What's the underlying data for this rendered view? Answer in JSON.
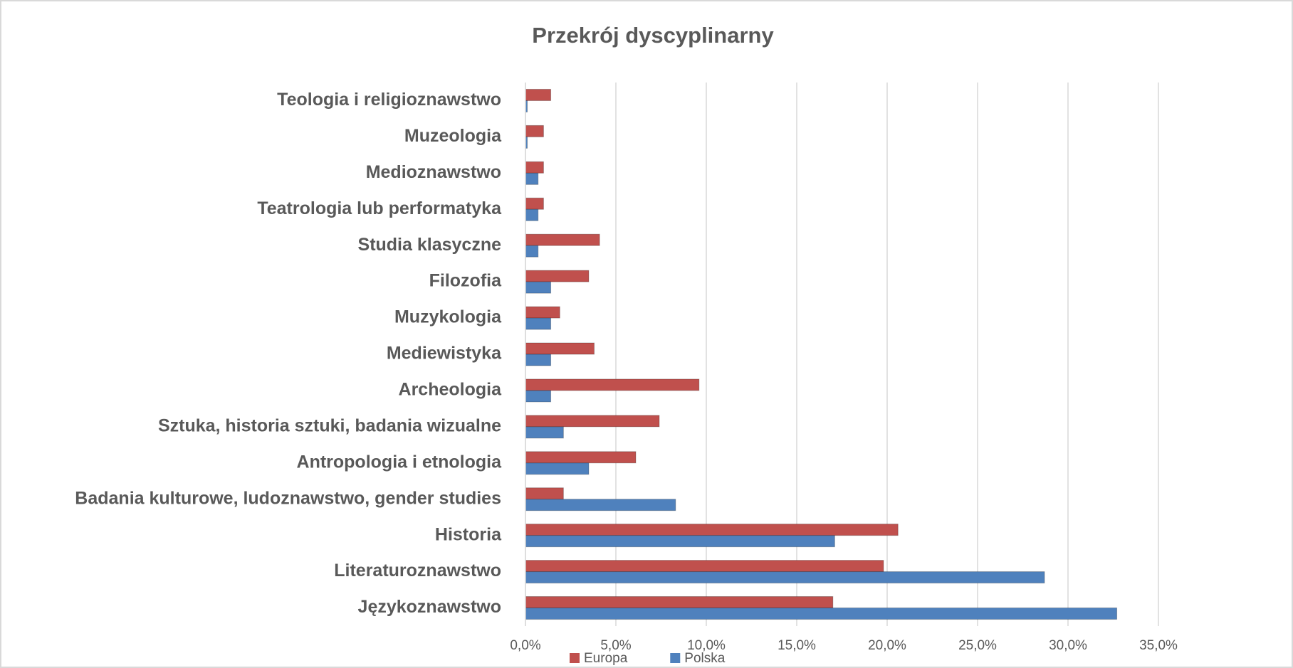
{
  "chart_data": {
    "type": "bar",
    "orientation": "horizontal",
    "title": "Przekrój dyscyplinarny",
    "categories": [
      "Językoznawstwo",
      "Literaturoznawstwo",
      "Historia",
      "Badania kulturowe, ludoznawstwo, gender studies",
      "Antropologia i etnologia",
      "Sztuka, historia sztuki, badania wizualne",
      "Archeologia",
      "Mediewistyka",
      "Muzykologia",
      "Filozofia",
      "Studia klasyczne",
      "Teatrologia lub performatyka",
      "Medioznawstwo",
      "Muzeologia",
      "Teologia i religioznawstwo"
    ],
    "series": [
      {
        "name": "Europa",
        "color": "#c0504d",
        "values": [
          17.0,
          19.8,
          20.6,
          2.1,
          6.1,
          7.4,
          9.6,
          3.8,
          1.9,
          3.5,
          4.1,
          1.0,
          1.0,
          1.0,
          1.4
        ]
      },
      {
        "name": "Polska",
        "color": "#4f81bd",
        "values": [
          32.7,
          28.7,
          17.1,
          8.3,
          3.5,
          2.1,
          1.4,
          1.4,
          1.4,
          1.4,
          0.7,
          0.7,
          0.7,
          0.1,
          0.1
        ]
      }
    ],
    "xlim": [
      0,
      35
    ],
    "xticks": [
      {
        "value": 0,
        "label": "0,0%"
      },
      {
        "value": 5,
        "label": "5,0%"
      },
      {
        "value": 10,
        "label": "10,0%"
      },
      {
        "value": 15,
        "label": "15,0%"
      },
      {
        "value": 20,
        "label": "20,0%"
      },
      {
        "value": 25,
        "label": "25,0%"
      },
      {
        "value": 30,
        "label": "30,0%"
      },
      {
        "value": 35,
        "label": "35,0%"
      }
    ],
    "grid": true,
    "legend": "bottom"
  }
}
